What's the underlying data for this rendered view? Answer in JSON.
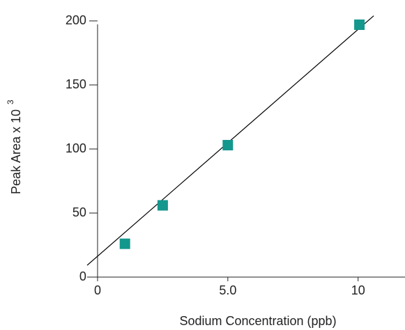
{
  "chart_data": {
    "type": "scatter",
    "x_label": "Sodium Concentration (ppb)",
    "y_label": "Peak Area x 10",
    "y_label_exponent": "3",
    "points": {
      "x": [
        1.05,
        2.5,
        5.0,
        10.05
      ],
      "y": [
        26,
        56,
        103,
        197
      ],
      "color": "#14978d"
    },
    "trend_line": {
      "x": [
        -0.4,
        10.6
      ],
      "y": [
        9.2,
        204
      ],
      "color": "#000000"
    },
    "xlim": [
      -0.4,
      11.8
    ],
    "ylim": [
      0,
      200
    ],
    "xticks": [
      0,
      {
        "value": 5,
        "label": "5.0"
      },
      10
    ],
    "yticks": [
      0,
      50,
      100,
      150,
      200
    ]
  }
}
